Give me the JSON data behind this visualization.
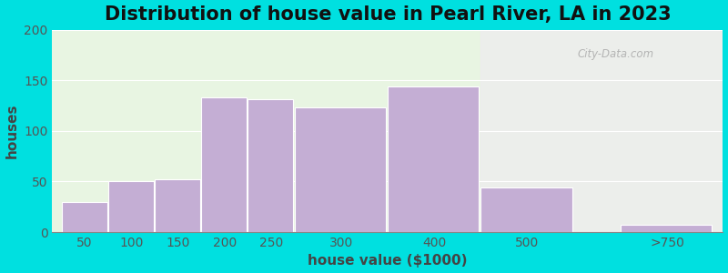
{
  "title": "Distribution of house value in Pearl River, LA in 2023",
  "xlabel": "house value ($1000)",
  "ylabel": "houses",
  "bar_labels": [
    "50",
    "100",
    "150",
    "200",
    "250",
    "300",
    "400",
    "500",
    ">750"
  ],
  "bar_values": [
    30,
    50,
    52,
    133,
    131,
    123,
    144,
    44,
    7
  ],
  "bar_color": "#c4aed4",
  "bar_edge_color": "#ffffff",
  "ylim": [
    0,
    200
  ],
  "yticks": [
    0,
    50,
    100,
    150,
    200
  ],
  "background_color": "#00e0e0",
  "plot_bg_color": "#e8f5e2",
  "title_fontsize": 15,
  "axis_label_fontsize": 11,
  "tick_fontsize": 10,
  "title_color": "#111111",
  "watermark_text": "City-Data.com"
}
